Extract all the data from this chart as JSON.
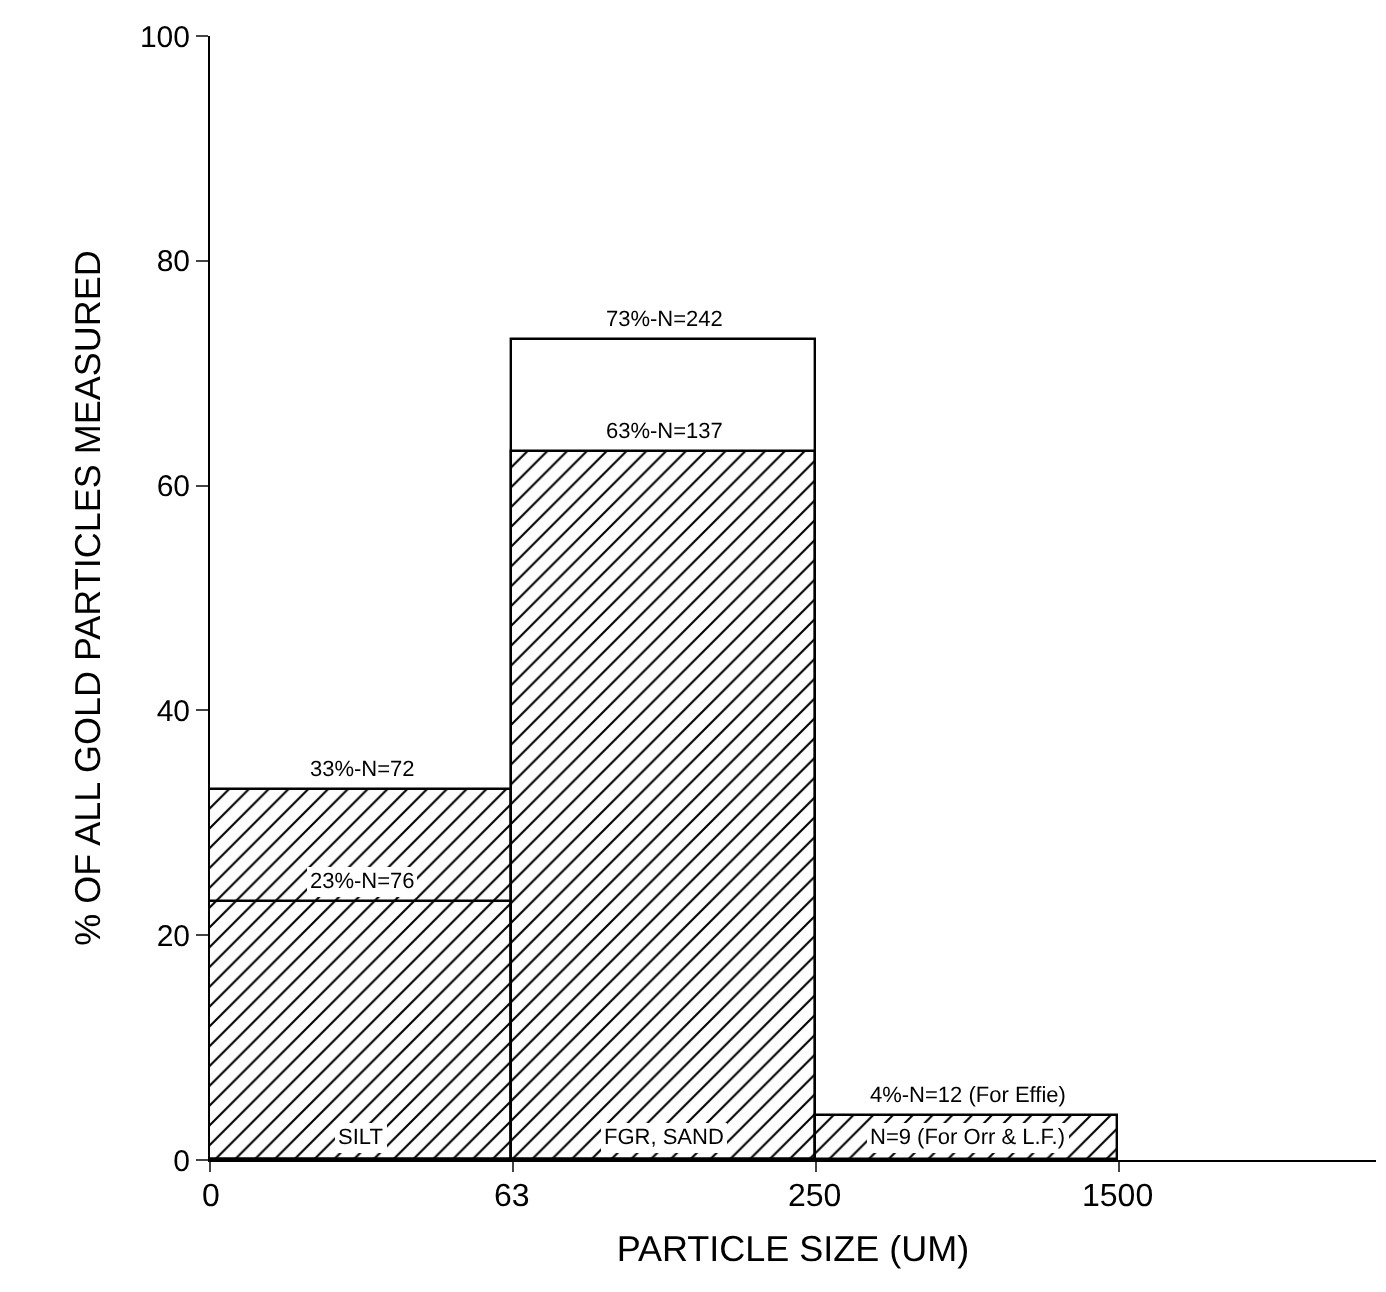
{
  "chart_data": {
    "type": "bar",
    "xlabel": "PARTICLE SIZE (UM)",
    "ylabel": "% OF ALL GOLD PARTICLES MEASURED",
    "categories": [
      "SILT",
      "FGR, SAND",
      null
    ],
    "series": [
      {
        "color": "#000000",
        "values": [
          33,
          63,
          4
        ],
        "value_labels": [
          "33%-N=72",
          "63%-N=137",
          "4%-N=12 (For Effie)"
        ]
      },
      {
        "color": "#000000",
        "values": [
          23,
          73,
          null
        ],
        "value_labels": [
          "23%-N=76",
          "73%-N=242",
          null
        ]
      }
    ],
    "ylim": [
      0,
      100
    ],
    "yticks": [
      0,
      20,
      40,
      60,
      80,
      100
    ],
    "grid": false,
    "annotations": [
      "0",
      "63",
      "250",
      "1500",
      {
        "text": "N=9 (For Orr & L.F.)",
        "y": 4
      }
    ]
  }
}
